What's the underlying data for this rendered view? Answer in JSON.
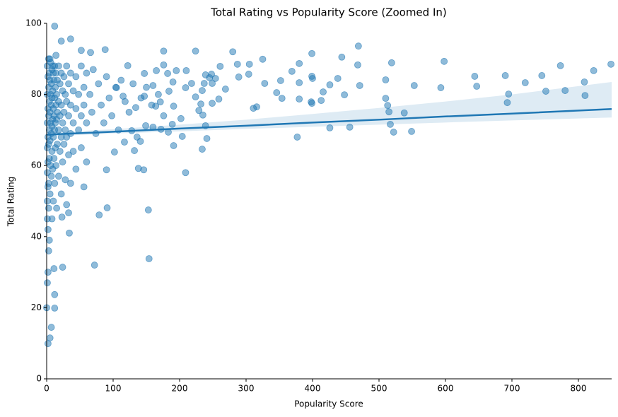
{
  "chart_data": {
    "type": "scatter",
    "title": "Total Rating vs Popularity Score (Zoomed In)",
    "x_label": "Popularity Score",
    "y_label": "Total Rating",
    "color": "#1f77b4",
    "xlim": [
      0,
      850
    ],
    "ylim": [
      0,
      100
    ],
    "xticks": [
      0,
      100,
      200,
      300,
      400,
      500,
      600,
      700,
      800
    ],
    "yticks": [
      0,
      20,
      40,
      60,
      80,
      100
    ],
    "x": [
      849,
      823,
      809,
      810,
      780,
      773,
      751,
      745,
      720,
      695,
      693,
      690,
      647,
      644,
      598,
      593,
      553,
      538,
      549,
      519,
      522,
      517,
      515,
      513,
      510,
      510,
      471,
      469,
      468,
      456,
      448,
      444,
      438,
      426,
      426,
      416,
      413,
      399,
      399,
      400,
      398,
      399,
      380,
      380,
      380,
      377,
      369,
      354,
      352,
      346,
      328,
      325,
      316,
      311,
      305,
      304,
      289,
      287,
      280,
      269,
      261,
      259,
      254,
      248,
      245,
      249,
      249,
      239,
      237,
      234,
      232,
      235,
      241,
      234,
      239,
      224,
      224,
      229,
      218,
      209,
      210,
      209,
      204,
      202,
      195,
      191,
      190,
      191,
      189,
      183,
      184,
      182,
      176,
      176,
      172,
      171,
      165,
      164,
      160,
      160,
      153,
      154,
      149,
      147,
      147,
      146,
      138,
      141,
      134,
      132,
      128,
      122,
      117,
      115,
      105,
      102,
      91,
      90,
      79,
      72,
      12,
      88,
      66,
      36,
      22,
      52,
      24,
      12,
      12,
      7,
      5,
      2,
      0,
      1,
      2,
      3,
      11,
      34,
      33,
      23,
      1,
      1,
      1,
      1,
      1,
      1,
      1,
      2,
      2,
      2,
      2,
      2,
      2,
      3,
      3,
      3,
      3,
      3,
      3,
      4,
      4,
      4,
      4,
      4,
      5,
      5,
      5,
      5,
      6,
      6,
      6,
      6,
      7,
      7,
      7,
      7,
      8,
      8,
      8,
      8,
      8,
      9,
      9,
      9,
      10,
      10,
      10,
      10,
      11,
      11,
      11,
      12,
      12,
      12,
      12,
      13,
      13,
      13,
      14,
      14,
      14,
      15,
      15,
      15,
      16,
      16,
      16,
      18,
      18,
      18,
      18,
      20,
      20,
      20,
      22,
      22,
      22,
      22,
      24,
      24,
      24,
      26,
      26,
      26,
      28,
      28,
      28,
      30,
      30,
      30,
      30,
      33,
      33,
      33,
      36,
      36,
      36,
      36,
      40,
      40,
      40,
      44,
      44,
      44,
      48,
      48,
      52,
      52,
      52,
      56,
      56,
      56,
      60,
      60,
      60,
      65,
      68,
      70,
      74,
      78,
      82,
      86,
      90,
      94,
      98,
      104,
      108,
      112,
      118,
      124,
      130,
      136,
      142,
      150,
      158,
      168,
      176,
      5,
      9,
      14
    ],
    "values": [
      88.5,
      86.7,
      83.5,
      79.7,
      81.1,
      88.1,
      80.9,
      85.3,
      83.3,
      80.1,
      77.7,
      85.3,
      82.3,
      85.1,
      89.3,
      81.9,
      82.5,
      74.8,
      69.6,
      88.9,
      69.4,
      71.6,
      75.1,
      76.9,
      78.9,
      84.1,
      82.5,
      93.6,
      88.3,
      70.8,
      79.9,
      90.5,
      84.5,
      82.7,
      70.6,
      80.7,
      78.3,
      91.5,
      85.1,
      84.5,
      77.9,
      77.5,
      88.7,
      83.3,
      78.7,
      68.0,
      86.5,
      78.9,
      83.9,
      80.5,
      83.1,
      89.9,
      76.5,
      76.1,
      88.5,
      85.7,
      84.9,
      88.5,
      92.0,
      81.5,
      87.9,
      78.7,
      84.5,
      85.7,
      84.7,
      83.1,
      77.5,
      85.5,
      83.1,
      81.1,
      77.3,
      74.2,
      67.6,
      64.6,
      71.2,
      92.2,
      79.3,
      75.5,
      83.1,
      81.9,
      86.7,
      58.0,
      68.2,
      73.2,
      86.7,
      76.7,
      83.5,
      65.6,
      71.6,
      69.4,
      80.9,
      85.9,
      92.2,
      88.3,
      70.2,
      77.9,
      86.7,
      76.7,
      82.5,
      70.8,
      47.5,
      33.8,
      71.2,
      85.9,
      79.5,
      58.8,
      59.2,
      66.8,
      76.3,
      64.2,
      69.8,
      88.1,
      66.6,
      79.5,
      81.9,
      63.8,
      48.1,
      58.8,
      46.1,
      32.0,
      99.2,
      92.6,
      91.8,
      95.6,
      95.0,
      92.4,
      31.4,
      23.7,
      19.9,
      14.5,
      11.5,
      9.9,
      20,
      27,
      30,
      36,
      31,
      41,
      46.7,
      45.5,
      88,
      80,
      72,
      65,
      58,
      50,
      45,
      85,
      76,
      68,
      61,
      54,
      42,
      90,
      82,
      74,
      66,
      55,
      48,
      86,
      78,
      70,
      62,
      39,
      84,
      75,
      67,
      52,
      89,
      80,
      72,
      60,
      83,
      77,
      69,
      57,
      87,
      79,
      71,
      64,
      45,
      81,
      73,
      59,
      86,
      76,
      68,
      50,
      84,
      74,
      62,
      88,
      79,
      70,
      55,
      82,
      72,
      65,
      86,
      77,
      60,
      80,
      73,
      48,
      84,
      75,
      66,
      88,
      78,
      70,
      57,
      83,
      74,
      64,
      86,
      77,
      68,
      52,
      81,
      72,
      61,
      85,
      75,
      66,
      80,
      70,
      56,
      88,
      78,
      68,
      49,
      83,
      74,
      63,
      86,
      77,
      69,
      55,
      81,
      72,
      64,
      85,
      76,
      59,
      80,
      70,
      88,
      74,
      65,
      82,
      77,
      54,
      86,
      72,
      61,
      80,
      75,
      87,
      69,
      83,
      77,
      72,
      85,
      79,
      74,
      82,
      70,
      84,
      78,
      75,
      83,
      68,
      79,
      82,
      77,
      80,
      74,
      90,
      88,
      91
    ],
    "regression": {
      "color": "#1f77b4",
      "x": [
        0,
        100,
        200,
        300,
        400,
        500,
        600,
        700,
        850
      ],
      "y": [
        68.7,
        69.5,
        70.4,
        71.2,
        72.1,
        72.9,
        73.8,
        74.6,
        75.9
      ],
      "lower": [
        68.2,
        69.0,
        69.6,
        70.3,
        70.9,
        71.5,
        72.1,
        72.7,
        73.5
      ],
      "upper": [
        69.2,
        70.2,
        71.5,
        72.9,
        74.5,
        76.2,
        78.0,
        80.0,
        83.5
      ]
    }
  }
}
